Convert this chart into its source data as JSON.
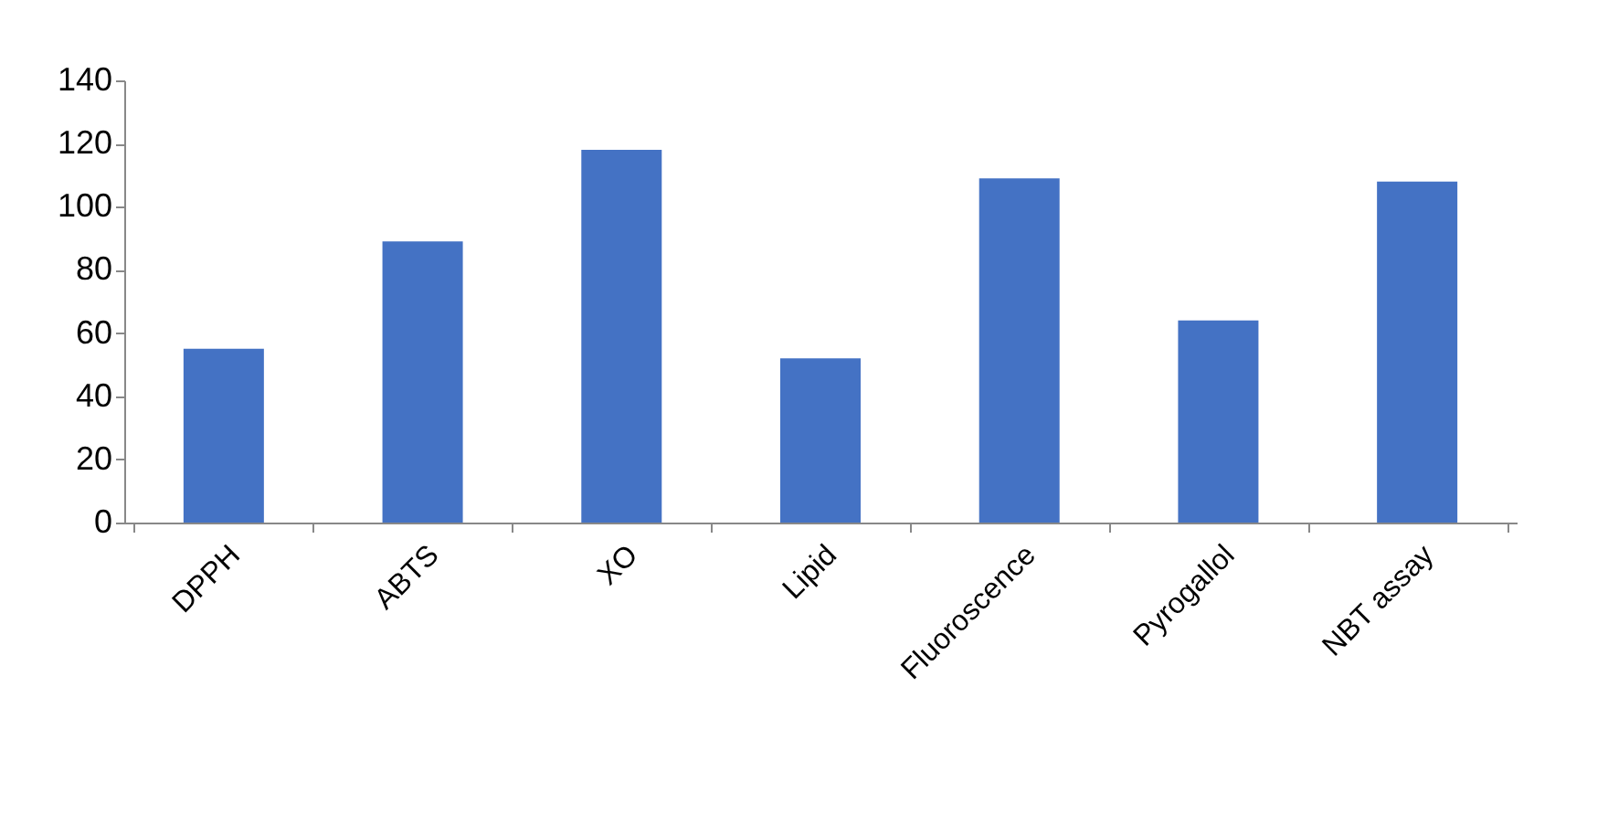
{
  "chart_data": {
    "type": "bar",
    "categories": [
      "DPPH",
      "ABTS",
      "XO",
      "Lipid",
      "Fluoroscence",
      "Pyrogallol",
      "NBT assay"
    ],
    "values": [
      55,
      89,
      118,
      52,
      109,
      64,
      108
    ],
    "color": "#4472c4",
    "ylim": [
      0,
      140
    ],
    "yticks": [
      0,
      20,
      40,
      60,
      80,
      100,
      120,
      140
    ],
    "grid": false
  }
}
